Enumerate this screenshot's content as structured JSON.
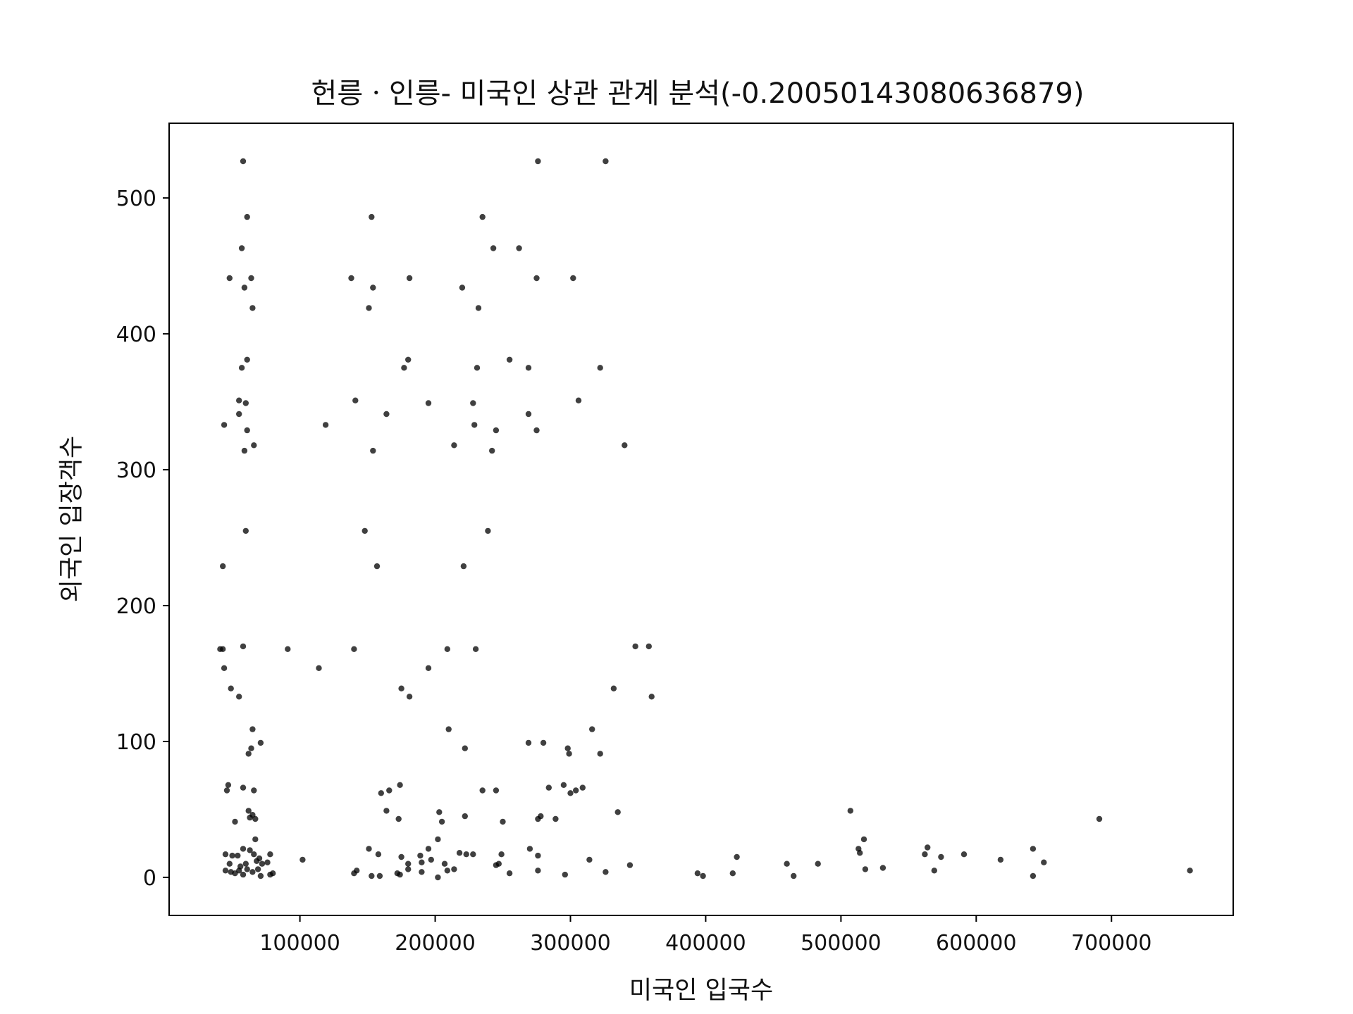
{
  "chart_data": {
    "type": "scatter",
    "title": "헌릉ㆍ인릉- 미국인 상관 관계 분석(-0.20050143080636879)",
    "xlabel": "미국인 입국수",
    "ylabel": "외국인 입장객수",
    "xlim": [
      3300,
      790000
    ],
    "ylim": [
      -28,
      555
    ],
    "x_ticks": [
      100000,
      200000,
      300000,
      400000,
      500000,
      600000,
      700000
    ],
    "x_tick_labels": [
      "100000",
      "200000",
      "300000",
      "400000",
      "500000",
      "600000",
      "700000"
    ],
    "y_ticks": [
      0,
      100,
      200,
      300,
      400,
      500
    ],
    "y_tick_labels": [
      "0",
      "100",
      "200",
      "300",
      "400",
      "500"
    ],
    "grid": false,
    "legend": "none",
    "marker_color": "#000000",
    "points": [
      [
        58000,
        527
      ],
      [
        276000,
        527
      ],
      [
        326000,
        527
      ],
      [
        61000,
        486
      ],
      [
        153000,
        486
      ],
      [
        235000,
        486
      ],
      [
        57000,
        463
      ],
      [
        243000,
        463
      ],
      [
        262000,
        463
      ],
      [
        48000,
        441
      ],
      [
        64000,
        441
      ],
      [
        138000,
        441
      ],
      [
        181000,
        441
      ],
      [
        275000,
        441
      ],
      [
        302000,
        441
      ],
      [
        59000,
        434
      ],
      [
        154000,
        434
      ],
      [
        220000,
        434
      ],
      [
        65000,
        419
      ],
      [
        151000,
        419
      ],
      [
        232000,
        419
      ],
      [
        61000,
        381
      ],
      [
        180000,
        381
      ],
      [
        255000,
        381
      ],
      [
        57000,
        375
      ],
      [
        177000,
        375
      ],
      [
        231000,
        375
      ],
      [
        269000,
        375
      ],
      [
        322000,
        375
      ],
      [
        55000,
        351
      ],
      [
        60000,
        349
      ],
      [
        141000,
        351
      ],
      [
        195000,
        349
      ],
      [
        228000,
        349
      ],
      [
        306000,
        351
      ],
      [
        55000,
        341
      ],
      [
        164000,
        341
      ],
      [
        269000,
        341
      ],
      [
        44000,
        333
      ],
      [
        119000,
        333
      ],
      [
        229000,
        333
      ],
      [
        61000,
        329
      ],
      [
        245000,
        329
      ],
      [
        275000,
        329
      ],
      [
        66000,
        318
      ],
      [
        214000,
        318
      ],
      [
        340000,
        318
      ],
      [
        59000,
        314
      ],
      [
        154000,
        314
      ],
      [
        242000,
        314
      ],
      [
        60000,
        255
      ],
      [
        148000,
        255
      ],
      [
        239000,
        255
      ],
      [
        43000,
        229
      ],
      [
        157000,
        229
      ],
      [
        221000,
        229
      ],
      [
        41000,
        168
      ],
      [
        43000,
        168
      ],
      [
        58000,
        170
      ],
      [
        91000,
        168
      ],
      [
        140000,
        168
      ],
      [
        209000,
        168
      ],
      [
        230000,
        168
      ],
      [
        348000,
        170
      ],
      [
        358000,
        170
      ],
      [
        44000,
        154
      ],
      [
        114000,
        154
      ],
      [
        195000,
        154
      ],
      [
        49000,
        139
      ],
      [
        175000,
        139
      ],
      [
        332000,
        139
      ],
      [
        55000,
        133
      ],
      [
        181000,
        133
      ],
      [
        360000,
        133
      ],
      [
        65000,
        109
      ],
      [
        210000,
        109
      ],
      [
        316000,
        109
      ],
      [
        71000,
        99
      ],
      [
        269000,
        99
      ],
      [
        280000,
        99
      ],
      [
        64000,
        95
      ],
      [
        222000,
        95
      ],
      [
        298000,
        95
      ],
      [
        62000,
        91
      ],
      [
        299000,
        91
      ],
      [
        322000,
        91
      ],
      [
        47000,
        68
      ],
      [
        46000,
        64
      ],
      [
        58000,
        66
      ],
      [
        66000,
        64
      ],
      [
        174000,
        68
      ],
      [
        166000,
        64
      ],
      [
        160000,
        62
      ],
      [
        235000,
        64
      ],
      [
        245000,
        64
      ],
      [
        284000,
        66
      ],
      [
        295000,
        68
      ],
      [
        300000,
        62
      ],
      [
        304000,
        64
      ],
      [
        309000,
        66
      ],
      [
        62000,
        49
      ],
      [
        63000,
        44
      ],
      [
        65000,
        46
      ],
      [
        67000,
        43
      ],
      [
        52000,
        41
      ],
      [
        164000,
        49
      ],
      [
        173000,
        43
      ],
      [
        203000,
        48
      ],
      [
        205000,
        41
      ],
      [
        222000,
        45
      ],
      [
        250000,
        41
      ],
      [
        278000,
        45
      ],
      [
        276000,
        43
      ],
      [
        289000,
        43
      ],
      [
        335000,
        48
      ],
      [
        507000,
        49
      ],
      [
        691000,
        43
      ],
      [
        67000,
        28
      ],
      [
        202000,
        28
      ],
      [
        517000,
        28
      ],
      [
        58000,
        21
      ],
      [
        63000,
        20
      ],
      [
        151000,
        21
      ],
      [
        195000,
        21
      ],
      [
        270000,
        21
      ],
      [
        513000,
        21
      ],
      [
        564000,
        22
      ],
      [
        642000,
        21
      ],
      [
        45000,
        17
      ],
      [
        50000,
        16
      ],
      [
        54000,
        16
      ],
      [
        66000,
        17
      ],
      [
        70000,
        14
      ],
      [
        78000,
        17
      ],
      [
        102000,
        13
      ],
      [
        158000,
        17
      ],
      [
        175000,
        15
      ],
      [
        189000,
        16
      ],
      [
        197000,
        13
      ],
      [
        218000,
        18
      ],
      [
        223000,
        17
      ],
      [
        228000,
        17
      ],
      [
        249000,
        17
      ],
      [
        276000,
        16
      ],
      [
        314000,
        13
      ],
      [
        423000,
        15
      ],
      [
        514000,
        18
      ],
      [
        562000,
        17
      ],
      [
        574000,
        15
      ],
      [
        591000,
        17
      ],
      [
        618000,
        13
      ],
      [
        650000,
        11
      ],
      [
        48000,
        10
      ],
      [
        56000,
        8
      ],
      [
        60000,
        10
      ],
      [
        68000,
        12
      ],
      [
        72000,
        10
      ],
      [
        76000,
        11
      ],
      [
        180000,
        10
      ],
      [
        190000,
        11
      ],
      [
        207000,
        10
      ],
      [
        245000,
        9
      ],
      [
        247000,
        10
      ],
      [
        344000,
        9
      ],
      [
        460000,
        10
      ],
      [
        483000,
        10
      ],
      [
        531000,
        7
      ],
      [
        45000,
        5
      ],
      [
        49000,
        4
      ],
      [
        52000,
        3
      ],
      [
        55000,
        5
      ],
      [
        58000,
        2
      ],
      [
        61000,
        6
      ],
      [
        65000,
        4
      ],
      [
        69000,
        6
      ],
      [
        71000,
        1
      ],
      [
        78000,
        2
      ],
      [
        80000,
        3
      ],
      [
        140000,
        3
      ],
      [
        142000,
        5
      ],
      [
        153000,
        1
      ],
      [
        159000,
        1
      ],
      [
        172000,
        3
      ],
      [
        174000,
        2
      ],
      [
        180000,
        6
      ],
      [
        190000,
        4
      ],
      [
        202000,
        0
      ],
      [
        209000,
        5
      ],
      [
        214000,
        6
      ],
      [
        255000,
        3
      ],
      [
        276000,
        5
      ],
      [
        296000,
        2
      ],
      [
        326000,
        4
      ],
      [
        394000,
        3
      ],
      [
        398000,
        1
      ],
      [
        420000,
        3
      ],
      [
        465000,
        1
      ],
      [
        518000,
        6
      ],
      [
        569000,
        5
      ],
      [
        642000,
        1
      ],
      [
        758000,
        5
      ]
    ]
  }
}
